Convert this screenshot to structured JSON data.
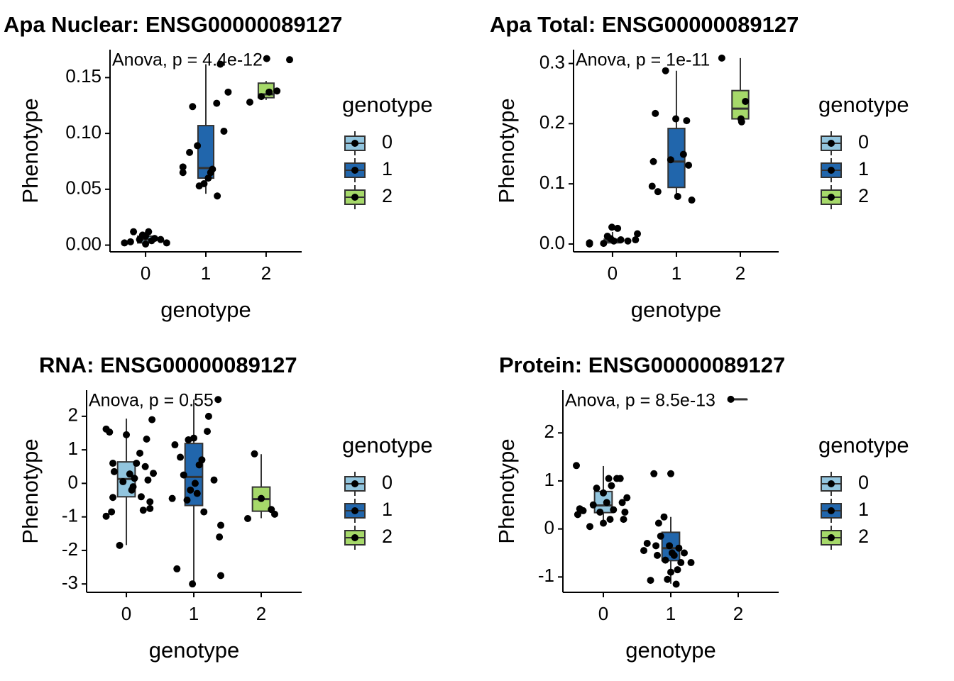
{
  "chart_data": [
    {
      "type": "box",
      "title": "Apa Nuclear: ENSG00000089127",
      "annotation": "Anova, p = 4.4e-12",
      "x_label": "genotype",
      "y_label": "Phenotype",
      "legend_title": "genotype",
      "categories": [
        "0",
        "1",
        "2"
      ],
      "xlim": [
        -0.59,
        2.59
      ],
      "ylim": [
        -0.006,
        0.175
      ],
      "yticks": [
        {
          "value": 0,
          "label": "0.00"
        },
        0.05,
        {
          "value": 0.1,
          "label": "0.10"
        },
        0.15
      ],
      "groups": [
        {
          "name": "0",
          "color": "#92c5de",
          "lower": 0,
          "q1": 0.002,
          "median": 0.005,
          "q3": 0.008,
          "upper": 0.012,
          "points": {
            "x": [
              -0.35,
              -0.25,
              -0.2,
              -0.1,
              0,
              0.05,
              0.1,
              0.15,
              0.25,
              0.35,
              0.0,
              -0.05
            ],
            "y": [
              0.002,
              0.003,
              0.012,
              0.005,
              0.008,
              0.012,
              0.004,
              0.006,
              0.005,
              0.002,
              0.001,
              0.009
            ]
          }
        },
        {
          "name": "1",
          "color": "#2166ac",
          "lower": 0.046,
          "q1": 0.06,
          "median": 0.069,
          "q3": 0.107,
          "upper": 0.162,
          "points": {
            "x": [
              0.78,
              0.62,
              0.62,
              0.73,
              0.86,
              0.89,
              0.97,
              1.04,
              1.11,
              1.19,
              1.24,
              1.18,
              1.3,
              1.37,
              1.08
            ],
            "y": [
              0.124,
              0.065,
              0.07,
              0.083,
              0.089,
              0.053,
              0.055,
              0.06,
              0.068,
              0.044,
              0.162,
              0.127,
              0.102,
              0.137,
              0.065
            ]
          }
        },
        {
          "name": "2",
          "color": "#a6d96a",
          "lower": 0.13,
          "q1": 0.132,
          "median": 0.135,
          "q3": 0.145,
          "upper": 0.147,
          "points": {
            "x": [
              1.73,
              1.92,
              2.01,
              2.18,
              2.39,
              2.05
            ],
            "y": [
              0.128,
              0.133,
              0.167,
              0.138,
              0.166,
              0.137
            ]
          }
        }
      ]
    },
    {
      "type": "box",
      "title": "Apa Total: ENSG00000089127",
      "annotation": "Anova, p = 1e-11",
      "x_label": "genotype",
      "y_label": "Phenotype",
      "legend_title": "genotype",
      "categories": [
        "0",
        "1",
        "2"
      ],
      "xlim": [
        -0.61,
        2.6
      ],
      "ylim": [
        -0.013,
        0.323
      ],
      "yticks": [
        {
          "value": 0,
          "label": "0.0"
        },
        0.1,
        0.2,
        0.3
      ],
      "groups": [
        {
          "name": "0",
          "color": "#92c5de",
          "lower": 0,
          "q1": 0.002,
          "median": 0.005,
          "q3": 0.008,
          "upper": 0.02,
          "points": {
            "x": [
              -0.36,
              -0.36,
              -0.14,
              -0.08,
              -0.01,
              0.08,
              0.02,
              0.13,
              0.24,
              0.36,
              0.39,
              -0.03
            ],
            "y": [
              0.002,
              0,
              0.001,
              0.013,
              0.028,
              0.026,
              0.005,
              0.007,
              0.005,
              0.007,
              0.017,
              0.009
            ]
          }
        },
        {
          "name": "1",
          "color": "#2166ac",
          "lower": 0.079,
          "q1": 0.094,
          "median": 0.137,
          "q3": 0.192,
          "upper": 0.288,
          "points": {
            "x": [
              0.83,
              0.67,
              0.64,
              0.62,
              0.71,
              0.99,
              1.02,
              1.16,
              1.11,
              1.19,
              1.24,
              0.91
            ],
            "y": [
              0.288,
              0.217,
              0.137,
              0.096,
              0.087,
              0.208,
              0.079,
              0.205,
              0.149,
              0.131,
              0.073,
              0.14
            ]
          }
        },
        {
          "name": "2",
          "color": "#a6d96a",
          "lower": 0.205,
          "q1": 0.208,
          "median": 0.225,
          "q3": 0.255,
          "upper": 0.309,
          "points": {
            "x": [
              1.71,
              2.01,
              2.08,
              2.02
            ],
            "y": [
              0.309,
              0.208,
              0.237,
              0.203
            ]
          }
        }
      ]
    },
    {
      "type": "box",
      "title": "RNA: ENSG00000089127",
      "annotation": "Anova, p = 0.55",
      "x_label": "genotype",
      "y_label": "Phenotype",
      "legend_title": "genotype",
      "categories": [
        "0",
        "1",
        "2"
      ],
      "xlim": [
        -0.59,
        2.6
      ],
      "ylim": [
        -3.25,
        2.78
      ],
      "yticks": [
        -3,
        -2,
        -1,
        0,
        1,
        2
      ],
      "groups": [
        {
          "name": "0",
          "color": "#92c5de",
          "lower": -1.84,
          "q1": -0.4,
          "median": 0.13,
          "q3": 0.64,
          "upper": 1.93,
          "points": {
            "x": [
              -0.3,
              -0.25,
              -0.2,
              -0.18,
              -0.2,
              -0.3,
              -0.22,
              -0.1,
              0.0,
              0.05,
              0.1,
              0.15,
              0.2,
              0.22,
              0.3,
              0.32,
              0.35,
              0.38,
              0.25,
              0.35,
              0.4,
              0.12,
              0.28,
              0.08,
              -0.05
            ],
            "y": [
              1.62,
              1.53,
              0.6,
              0.35,
              -0.42,
              -0.98,
              -0.85,
              -1.85,
              1.45,
              0.28,
              -0.1,
              0.6,
              0.9,
              -0.4,
              1.32,
              0.1,
              -0.55,
              1.9,
              -0.8,
              -0.75,
              0.3,
              0.15,
              0.5,
              -0.2,
              0.05
            ]
          }
        },
        {
          "name": "1",
          "color": "#2166ac",
          "lower": -3,
          "q1": -0.66,
          "median": 0.19,
          "q3": 1.19,
          "upper": 2.5,
          "points": {
            "x": [
              0.68,
              0.72,
              0.75,
              0.8,
              0.85,
              0.9,
              0.95,
              1.0,
              1.02,
              1.05,
              1.12,
              1.15,
              1.2,
              1.22,
              1.3,
              1.36,
              1.4,
              1.38,
              1.4,
              0.98,
              0.92,
              1.08
            ],
            "y": [
              -0.45,
              1.15,
              -2.55,
              0.78,
              0.25,
              -0.5,
              -0.2,
              1.35,
              0,
              -0.3,
              0.7,
              -0.85,
              1.55,
              2,
              0.1,
              2.5,
              -1.25,
              -1.6,
              -2.75,
              -3,
              1.3,
              0.55
            ]
          }
        },
        {
          "name": "2",
          "color": "#a6d96a",
          "lower": -1.04,
          "q1": -0.83,
          "median": -0.47,
          "q3": -0.11,
          "upper": 0.87,
          "points": {
            "x": [
              1.8,
              1.9,
              2.0,
              2.15,
              2.2
            ],
            "y": [
              -1.05,
              0.88,
              -0.45,
              -0.78,
              -0.92
            ]
          }
        }
      ]
    },
    {
      "type": "box",
      "title": "Protein: ENSG00000089127",
      "annotation": "Anova, p = 8.5e-13",
      "x_label": "genotype",
      "y_label": "Phenotype",
      "legend_title": "genotype",
      "categories": [
        "0",
        "1",
        "2"
      ],
      "xlim": [
        -0.6,
        2.6
      ],
      "ylim": [
        -1.32,
        2.89
      ],
      "yticks": [
        -1,
        0,
        1,
        2
      ],
      "groups": [
        {
          "name": "0",
          "color": "#92c5de",
          "lower": 0.07,
          "q1": 0.34,
          "median": 0.49,
          "q3": 0.78,
          "upper": 1.31,
          "points": {
            "x": [
              -0.4,
              -0.35,
              -0.38,
              -0.3,
              -0.2,
              -0.15,
              -0.1,
              0.0,
              0.05,
              0.08,
              0.12,
              0.15,
              0.2,
              0.25,
              0.28,
              0.3,
              0.32,
              0.35,
              0.1,
              0.0,
              -0.05
            ],
            "y": [
              1.32,
              0.42,
              0.3,
              0.38,
              0.05,
              0.5,
              0.85,
              0.75,
              0.55,
              1.05,
              0.9,
              0.4,
              1.05,
              1.05,
              0.55,
              0.2,
              0.35,
              0.65,
              0.2,
              0.12,
              0.35
            ]
          }
        },
        {
          "name": "1",
          "color": "#2166ac",
          "lower": -1.14,
          "q1": -0.66,
          "median": -0.4,
          "q3": -0.07,
          "upper": 0.25,
          "points": {
            "x": [
              0.6,
              0.65,
              0.7,
              0.75,
              0.78,
              0.8,
              0.85,
              0.9,
              0.92,
              0.95,
              0.98,
              1.0,
              1.02,
              1.05,
              1.08,
              1.1,
              1.12,
              1.15,
              1.2,
              1.3,
              0.82,
              1.0
            ],
            "y": [
              -0.45,
              -0.3,
              -1.07,
              1.15,
              -0.35,
              -0.55,
              -0.15,
              0.25,
              -0.65,
              -1.05,
              -0.35,
              -0.9,
              -0.5,
              -0.55,
              -1.15,
              -0.85,
              -0.4,
              -0.7,
              -0.5,
              -0.7,
              0.12,
              1.15
            ]
          }
        },
        {
          "name": "2",
          "color": "#a6d96a",
          "lower": 2.7,
          "q1": 2.7,
          "median": 2.7,
          "q3": 2.7,
          "upper": 2.7,
          "points": {
            "x": [
              1.89
            ],
            "y": [
              2.7
            ]
          }
        }
      ]
    }
  ]
}
